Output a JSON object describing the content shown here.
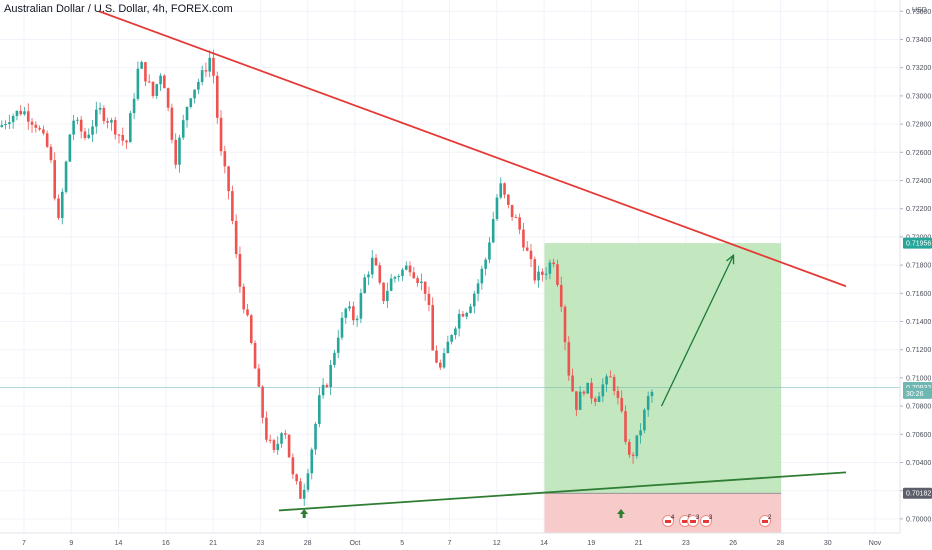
{
  "header": {
    "title": "Australian Dollar / U.S. Dollar, 4h, FOREX.com"
  },
  "chart_data": {
    "type": "candlestick",
    "title": "Australian Dollar / U.S. Dollar, 4h, FOREX.com",
    "currency_label": "USD",
    "y_ticks": [
      "0.73600",
      "0.73400",
      "0.73200",
      "0.73000",
      "0.72800",
      "0.72600",
      "0.72400",
      "0.72200",
      "0.72000",
      "0.71800",
      "0.71600",
      "0.71400",
      "0.71200",
      "0.71000",
      "0.70800",
      "0.70600",
      "0.70400",
      "0.70200",
      "0.70000"
    ],
    "x_ticks": [
      "7",
      "9",
      "14",
      "16",
      "21",
      "23",
      "28",
      "Oct",
      "5",
      "7",
      "12",
      "14",
      "19",
      "21",
      "23",
      "26",
      "28",
      "30",
      "Nov"
    ],
    "price_tags": [
      {
        "label": "0.71956",
        "value": 0.71956,
        "color": "#26a69a"
      },
      {
        "label": "0.70932",
        "value": 0.70932,
        "color": "#6fb7b3"
      },
      {
        "label": "30:26",
        "value": 0.7089,
        "color": "#6fb7b3"
      },
      {
        "label": "0.70182",
        "value": 0.70182,
        "color": "#5d606b"
      }
    ],
    "current_price": 0.70932,
    "ylim": [
      0.699,
      0.7368
    ],
    "trendlines": [
      {
        "name": "resistance",
        "color": "#e53935",
        "from": {
          "x": 0.11,
          "y": 0.736
        },
        "to": {
          "x": 0.94,
          "y": 0.7165
        }
      },
      {
        "name": "support",
        "color": "#2e7d32",
        "from": {
          "x": 0.31,
          "y": 0.7006
        },
        "to": {
          "x": 0.94,
          "y": 0.7033
        }
      }
    ],
    "position": {
      "entry": 0.70182,
      "target": 0.71956,
      "stop": 0.699,
      "profit_color": "#b9e3b4",
      "loss_color": "#f7c2c2"
    },
    "projection_arrow": {
      "from": {
        "x": 0.735,
        "y": 0.708
      },
      "to": {
        "x": 0.815,
        "y": 0.7187
      },
      "color": "#1b7a3a"
    },
    "up_markers": [
      0.338,
      0.69
    ],
    "event_badges": [
      "4",
      "5",
      "3",
      "3",
      "2"
    ],
    "colors": {
      "up": "#26a69a",
      "down": "#ef5350"
    },
    "candles_keypoints": [
      [
        0.0,
        0.7278
      ],
      [
        0.01,
        0.7285
      ],
      [
        0.025,
        0.729
      ],
      [
        0.04,
        0.728
      ],
      [
        0.055,
        0.726
      ],
      [
        0.065,
        0.721
      ],
      [
        0.08,
        0.7285
      ],
      [
        0.095,
        0.727
      ],
      [
        0.11,
        0.729
      ],
      [
        0.125,
        0.728
      ],
      [
        0.14,
        0.7265
      ],
      [
        0.155,
        0.7325
      ],
      [
        0.17,
        0.73
      ],
      [
        0.18,
        0.732
      ],
      [
        0.195,
        0.7255
      ],
      [
        0.21,
        0.73
      ],
      [
        0.225,
        0.7315
      ],
      [
        0.235,
        0.733
      ],
      [
        0.245,
        0.726
      ],
      [
        0.255,
        0.723
      ],
      [
        0.265,
        0.717
      ],
      [
        0.275,
        0.714
      ],
      [
        0.285,
        0.71
      ],
      [
        0.295,
        0.706
      ],
      [
        0.305,
        0.7045
      ],
      [
        0.315,
        0.707
      ],
      [
        0.325,
        0.703
      ],
      [
        0.335,
        0.7015
      ],
      [
        0.345,
        0.7045
      ],
      [
        0.355,
        0.7085
      ],
      [
        0.365,
        0.71
      ],
      [
        0.375,
        0.713
      ],
      [
        0.385,
        0.715
      ],
      [
        0.395,
        0.714
      ],
      [
        0.405,
        0.717
      ],
      [
        0.415,
        0.7185
      ],
      [
        0.425,
        0.7155
      ],
      [
        0.435,
        0.717
      ],
      [
        0.445,
        0.7175
      ],
      [
        0.455,
        0.718
      ],
      [
        0.465,
        0.717
      ],
      [
        0.475,
        0.716
      ],
      [
        0.48,
        0.712
      ],
      [
        0.49,
        0.7105
      ],
      [
        0.5,
        0.713
      ],
      [
        0.51,
        0.7145
      ],
      [
        0.52,
        0.715
      ],
      [
        0.53,
        0.7165
      ],
      [
        0.54,
        0.7185
      ],
      [
        0.55,
        0.722
      ],
      [
        0.555,
        0.7238
      ],
      [
        0.565,
        0.722
      ],
      [
        0.575,
        0.721
      ],
      [
        0.585,
        0.719
      ],
      [
        0.595,
        0.717
      ],
      [
        0.605,
        0.7175
      ],
      [
        0.615,
        0.7185
      ],
      [
        0.625,
        0.715
      ],
      [
        0.63,
        0.711
      ],
      [
        0.64,
        0.708
      ],
      [
        0.65,
        0.7095
      ],
      [
        0.66,
        0.7085
      ],
      [
        0.67,
        0.7095
      ],
      [
        0.68,
        0.71
      ],
      [
        0.69,
        0.7075
      ],
      [
        0.7,
        0.704
      ],
      [
        0.71,
        0.706
      ],
      [
        0.72,
        0.7085
      ],
      [
        0.728,
        0.70932
      ]
    ]
  }
}
